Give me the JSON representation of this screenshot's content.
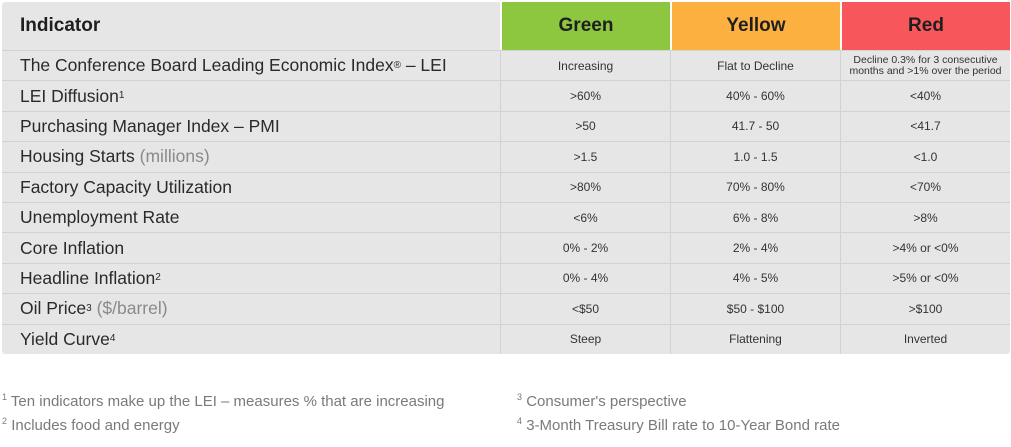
{
  "header": {
    "indicator": "Indicator",
    "green": "Green",
    "yellow": "Yellow",
    "red": "Red"
  },
  "colors": {
    "green": "#8dc63f",
    "yellow": "#fbb040",
    "red": "#f7565a"
  },
  "rows": [
    {
      "name": "The Conference Board Leading Economic Index",
      "reg": "®",
      "suffix": " – LEI",
      "green": "Increasing",
      "yellow": "Flat to Decline",
      "red_line1": "Decline 0.3% for 3 consecutive",
      "red_line2": "months and >1% over the period"
    },
    {
      "name": "LEI Diffusion",
      "sup": "1",
      "green": ">60%",
      "yellow": "40% - 60%",
      "red": "<40%"
    },
    {
      "name": "Purchasing Manager Index – PMI",
      "green": ">50",
      "yellow": "41.7 - 50",
      "red": "<41.7"
    },
    {
      "name": "Housing Starts",
      "unit": "(millions)",
      "green": ">1.5",
      "yellow": "1.0 - 1.5",
      "red": "<1.0"
    },
    {
      "name": "Factory Capacity Utilization",
      "green": ">80%",
      "yellow": "70% - 80%",
      "red": "<70%"
    },
    {
      "name": "Unemployment Rate",
      "green": "<6%",
      "yellow": "6% - 8%",
      "red": ">8%"
    },
    {
      "name": "Core Inflation",
      "green": "0% - 2%",
      "yellow": "2% - 4%",
      "red": ">4% or <0%"
    },
    {
      "name": "Headline Inflation",
      "sup": "2",
      "green": "0% - 4%",
      "yellow": "4% - 5%",
      "red": ">5% or <0%"
    },
    {
      "name": "Oil Price",
      "sup": "3",
      "unit": "($/barrel)",
      "green": "<$50",
      "yellow": "$50 - $100",
      "red": ">$100"
    },
    {
      "name": "Yield Curve",
      "sup": "4",
      "green": "Steep",
      "yellow": "Flattening",
      "red": "Inverted"
    }
  ],
  "footnotes": [
    {
      "num": "1",
      "text": "Ten indicators make up the LEI – measures % that are increasing"
    },
    {
      "num": "2",
      "text": "Includes food and energy"
    },
    {
      "num": "3",
      "text": "Consumer's perspective"
    },
    {
      "num": "4",
      "text": "3-Month Treasury Bill rate to 10-Year Bond rate"
    }
  ]
}
